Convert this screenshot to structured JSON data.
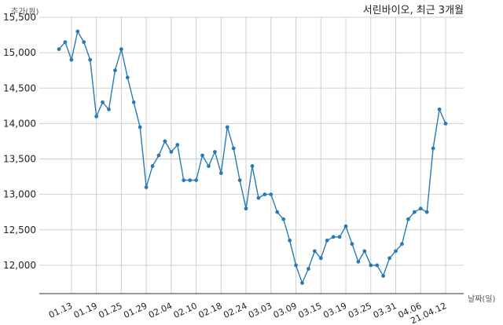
{
  "chart_data": {
    "type": "line",
    "title": "서린바이오, 최근 3개월",
    "ylabel": "주가(원)",
    "xlabel": "날짜(일)",
    "ylim": [
      11600,
      15500
    ],
    "yticks": [
      12000,
      12500,
      13000,
      13500,
      14000,
      14500,
      15000,
      15500
    ],
    "ytick_labels": [
      "12,000",
      "12,500",
      "13,000",
      "13,500",
      "14,000",
      "14,500",
      "15,000",
      "15,500"
    ],
    "xtick_labels": [
      "01.13",
      "01.19",
      "01.25",
      "01.29",
      "02.04",
      "02.10",
      "02.18",
      "02.24",
      "03.03",
      "03.09",
      "03.15",
      "03.19",
      "03.25",
      "03.31",
      "04.06",
      "21.04.12"
    ],
    "xtick_index": [
      2,
      6,
      10,
      14,
      18,
      22,
      26,
      30,
      34,
      38,
      42,
      46,
      50,
      54,
      58,
      62
    ],
    "grid": true,
    "color": "#2b7bb3",
    "series": [
      {
        "values": [
          15050,
          15150,
          14900,
          15300,
          15150,
          14900,
          14100,
          14300,
          14200,
          14750,
          15050,
          14650,
          14300,
          13950,
          13100,
          13400,
          13550,
          13750,
          13600,
          13700,
          13200,
          13200,
          13200,
          13550,
          13400,
          13600,
          13300,
          13950,
          13650,
          13200,
          12800,
          13400,
          12950,
          13000,
          13000,
          12750,
          12650,
          12350,
          12000,
          11750,
          11950,
          12200,
          12100,
          12350,
          12400,
          12400,
          12550,
          12300,
          12050,
          12200,
          12000,
          12000,
          11850,
          12100,
          12200,
          12300,
          12650,
          12750,
          12800,
          12750,
          13650,
          14200,
          14000
        ]
      }
    ]
  }
}
